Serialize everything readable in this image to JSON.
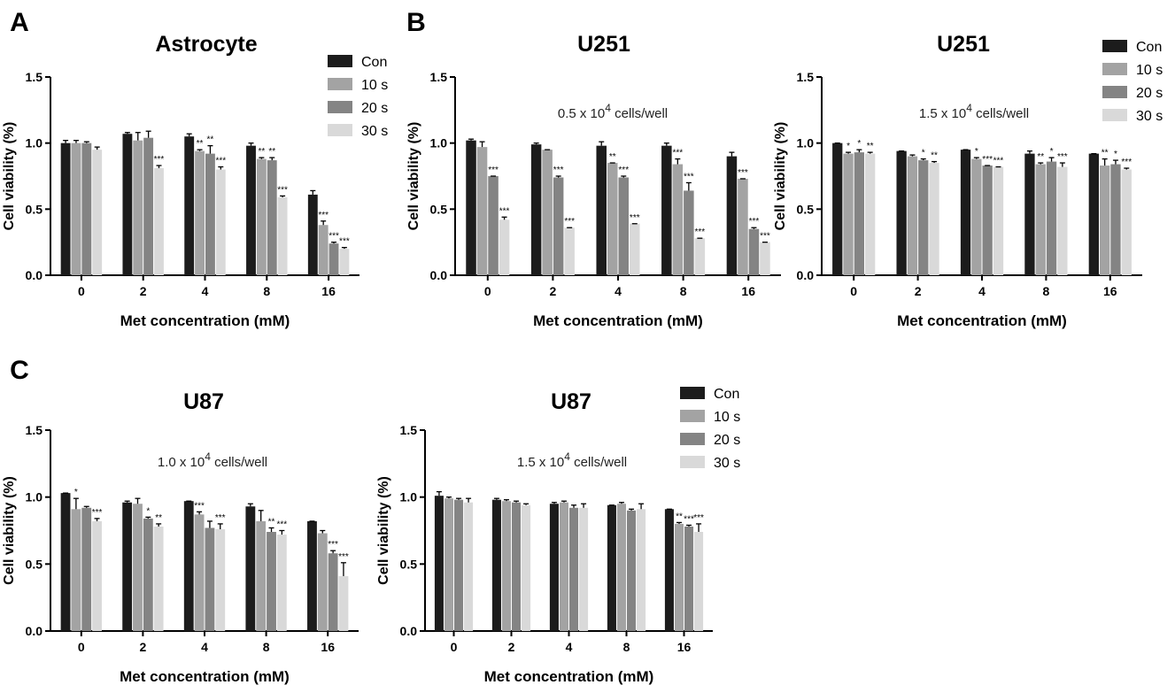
{
  "colors": {
    "Con": "#1c1c1c",
    "10 s": "#a3a3a3",
    "20 s": "#848484",
    "30 s": "#d9d9d9",
    "axis": "#000000"
  },
  "chart_data": [
    {
      "type": "bar",
      "panel_letter": "A",
      "title": "Astrocyte",
      "subtitle_pre": "",
      "subtitle_exp": "",
      "subtitle_post": "",
      "xlabel": "Met concentration (mM)",
      "ylabel": "Cell viability (%)",
      "ylim": [
        0,
        1.5
      ],
      "yticks": [
        "0.0",
        "0.5",
        "1.0",
        "1.5"
      ],
      "categories": [
        "0",
        "2",
        "4",
        "8",
        "16"
      ],
      "legend": true,
      "series": [
        {
          "name": "Con",
          "values": [
            1.0,
            1.07,
            1.05,
            0.98,
            0.61
          ],
          "errors": [
            0.02,
            0.01,
            0.02,
            0.02,
            0.03
          ],
          "sig": [
            "",
            "",
            "",
            "",
            ""
          ]
        },
        {
          "name": "10 s",
          "values": [
            1.0,
            1.02,
            0.94,
            0.88,
            0.38
          ],
          "errors": [
            0.02,
            0.06,
            0.01,
            0.01,
            0.03
          ],
          "sig": [
            "",
            "",
            "**",
            "**",
            "***"
          ]
        },
        {
          "name": "20 s",
          "values": [
            1.0,
            1.04,
            0.92,
            0.87,
            0.24
          ],
          "errors": [
            0.01,
            0.05,
            0.06,
            0.02,
            0.01
          ],
          "sig": [
            "",
            "",
            "**",
            "**",
            "***"
          ]
        },
        {
          "name": "30 s",
          "values": [
            0.95,
            0.81,
            0.8,
            0.59,
            0.2
          ],
          "errors": [
            0.02,
            0.02,
            0.02,
            0.01,
            0.01
          ],
          "sig": [
            "",
            "***",
            "***",
            "***",
            "***"
          ]
        }
      ]
    },
    {
      "type": "bar",
      "panel_letter": "B",
      "title": "U251",
      "subtitle_pre": "0.5 x 10",
      "subtitle_exp": "4",
      "subtitle_post": " cells/well",
      "xlabel": "Met concentration (mM)",
      "ylabel": "Cell viability (%)",
      "ylim": [
        0,
        1.5
      ],
      "yticks": [
        "0.0",
        "0.5",
        "1.0",
        "1.5"
      ],
      "categories": [
        "0",
        "2",
        "4",
        "8",
        "16"
      ],
      "legend": false,
      "series": [
        {
          "name": "Con",
          "values": [
            1.02,
            0.99,
            0.98,
            0.98,
            0.9
          ],
          "errors": [
            0.01,
            0.01,
            0.03,
            0.02,
            0.03
          ],
          "sig": [
            "",
            "",
            "",
            "",
            ""
          ]
        },
        {
          "name": "10 s",
          "values": [
            0.97,
            0.95,
            0.85,
            0.84,
            0.73
          ],
          "errors": [
            0.04,
            0.0,
            0.0,
            0.04,
            0.0
          ],
          "sig": [
            "",
            "",
            "**",
            "***",
            "***"
          ]
        },
        {
          "name": "20 s",
          "values": [
            0.75,
            0.74,
            0.74,
            0.64,
            0.35
          ],
          "errors": [
            0.0,
            0.01,
            0.01,
            0.06,
            0.01
          ],
          "sig": [
            "***",
            "***",
            "***",
            "***",
            "***"
          ]
        },
        {
          "name": "30 s",
          "values": [
            0.42,
            0.36,
            0.39,
            0.28,
            0.25
          ],
          "errors": [
            0.02,
            0.0,
            0.0,
            0.0,
            0.0
          ],
          "sig": [
            "***",
            "***",
            "***",
            "***",
            "***"
          ]
        }
      ]
    },
    {
      "type": "bar",
      "panel_letter": "",
      "title": "U251",
      "subtitle_pre": "1.5 x 10",
      "subtitle_exp": "4",
      "subtitle_post": " cells/well",
      "xlabel": "Met concentration (mM)",
      "ylabel": "Cell viability (%)",
      "ylim": [
        0,
        1.5
      ],
      "yticks": [
        "0.0",
        "0.5",
        "1.0",
        "1.5"
      ],
      "categories": [
        "0",
        "2",
        "4",
        "8",
        "16"
      ],
      "legend": true,
      "series": [
        {
          "name": "Con",
          "values": [
            1.0,
            0.94,
            0.95,
            0.92,
            0.92
          ],
          "errors": [
            0.0,
            0.0,
            0.0,
            0.02,
            0.0
          ],
          "sig": [
            "",
            "",
            "",
            "",
            ""
          ]
        },
        {
          "name": "10 s",
          "values": [
            0.92,
            0.9,
            0.88,
            0.84,
            0.83
          ],
          "errors": [
            0.01,
            0.01,
            0.01,
            0.01,
            0.05
          ],
          "sig": [
            "*",
            "",
            "*",
            "**",
            "**"
          ]
        },
        {
          "name": "20 s",
          "values": [
            0.93,
            0.87,
            0.83,
            0.86,
            0.84
          ],
          "errors": [
            0.02,
            0.01,
            0.0,
            0.03,
            0.03
          ],
          "sig": [
            "*",
            "*",
            "***",
            "*",
            "*"
          ]
        },
        {
          "name": "30 s",
          "values": [
            0.92,
            0.85,
            0.82,
            0.82,
            0.8
          ],
          "errors": [
            0.01,
            0.01,
            0.0,
            0.03,
            0.01
          ],
          "sig": [
            "**",
            "**",
            "***",
            "***",
            "***"
          ]
        }
      ]
    },
    {
      "type": "bar",
      "panel_letter": "C",
      "title": "U87",
      "subtitle_pre": "1.0 x 10",
      "subtitle_exp": "4",
      "subtitle_post": " cells/well",
      "xlabel": "Met concentration (mM)",
      "ylabel": "Cell viability (%)",
      "ylim": [
        0,
        1.5
      ],
      "yticks": [
        "0.0",
        "0.5",
        "1.0",
        "1.5"
      ],
      "categories": [
        "0",
        "2",
        "4",
        "8",
        "16"
      ],
      "legend": false,
      "series": [
        {
          "name": "Con",
          "values": [
            1.03,
            0.96,
            0.97,
            0.93,
            0.82
          ],
          "errors": [
            0.0,
            0.01,
            0.0,
            0.02,
            0.0
          ],
          "sig": [
            "",
            "",
            "",
            "",
            ""
          ]
        },
        {
          "name": "10 s",
          "values": [
            0.91,
            0.95,
            0.87,
            0.82,
            0.73
          ],
          "errors": [
            0.08,
            0.04,
            0.02,
            0.08,
            0.02
          ],
          "sig": [
            "*",
            "",
            "***",
            "",
            ""
          ]
        },
        {
          "name": "20 s",
          "values": [
            0.92,
            0.84,
            0.77,
            0.74,
            0.58
          ],
          "errors": [
            0.01,
            0.01,
            0.05,
            0.03,
            0.02
          ],
          "sig": [
            "",
            "*",
            "",
            "**",
            "***"
          ]
        },
        {
          "name": "30 s",
          "values": [
            0.82,
            0.78,
            0.76,
            0.72,
            0.41
          ],
          "errors": [
            0.02,
            0.02,
            0.04,
            0.03,
            0.1
          ],
          "sig": [
            "***",
            "**",
            "***",
            "***",
            "***"
          ]
        }
      ]
    },
    {
      "type": "bar",
      "panel_letter": "",
      "title": "U87",
      "subtitle_pre": "1.5 x 10",
      "subtitle_exp": "4",
      "subtitle_post": " cells/well",
      "xlabel": "Met concentration (mM)",
      "ylabel": "Cell viability (%)",
      "ylim": [
        0,
        1.5
      ],
      "yticks": [
        "0.0",
        "0.5",
        "1.0",
        "1.5"
      ],
      "categories": [
        "0",
        "2",
        "4",
        "8",
        "16"
      ],
      "legend": true,
      "series": [
        {
          "name": "Con",
          "values": [
            1.01,
            0.98,
            0.95,
            0.94,
            0.91
          ],
          "errors": [
            0.03,
            0.01,
            0.01,
            0.0,
            0.0
          ],
          "sig": [
            "",
            "",
            "",
            "",
            ""
          ]
        },
        {
          "name": "10 s",
          "values": [
            0.99,
            0.97,
            0.96,
            0.95,
            0.8
          ],
          "errors": [
            0.01,
            0.01,
            0.01,
            0.01,
            0.01
          ],
          "sig": [
            "",
            "",
            "",
            "",
            "**"
          ]
        },
        {
          "name": "20 s",
          "values": [
            0.98,
            0.96,
            0.92,
            0.9,
            0.78
          ],
          "errors": [
            0.01,
            0.01,
            0.02,
            0.01,
            0.01
          ],
          "sig": [
            "",
            "",
            "",
            "",
            "***"
          ]
        },
        {
          "name": "30 s",
          "values": [
            0.96,
            0.94,
            0.92,
            0.91,
            0.74
          ],
          "errors": [
            0.03,
            0.01,
            0.03,
            0.04,
            0.06
          ],
          "sig": [
            "",
            "",
            "",
            "",
            "***"
          ]
        }
      ]
    }
  ]
}
